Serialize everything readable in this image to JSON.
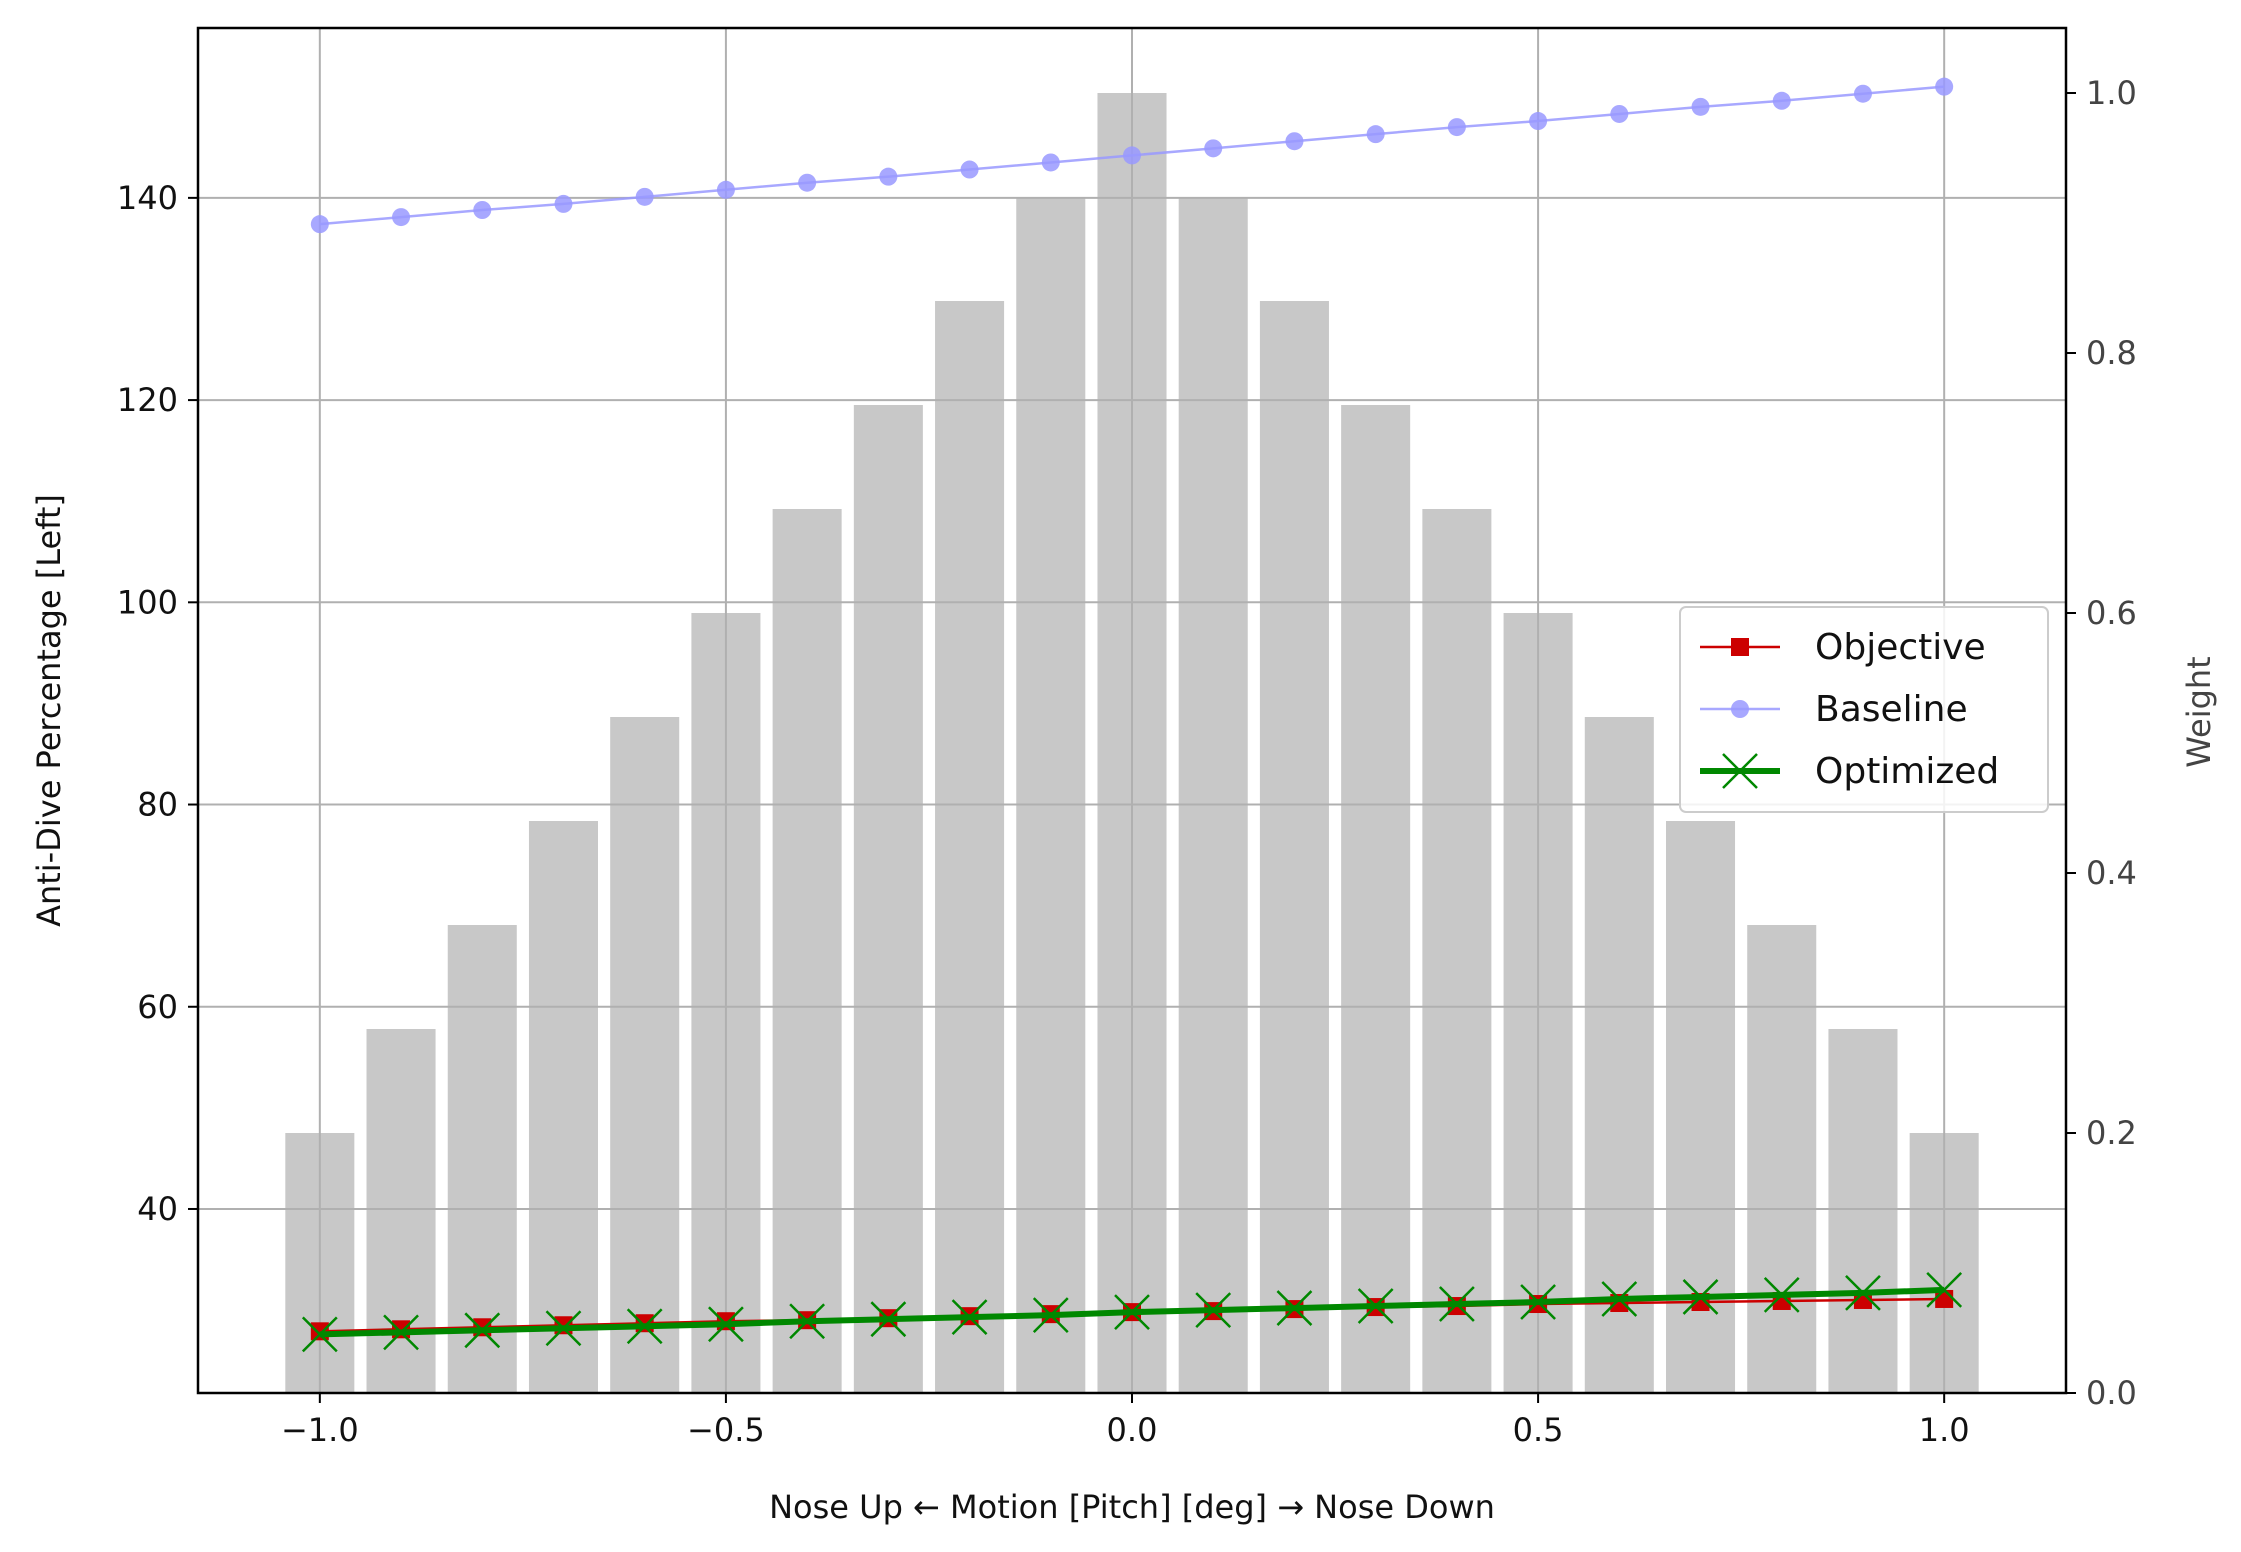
{
  "chart_data": {
    "type": "line",
    "xlabel": "Nose Up ← Motion [Pitch] [deg] → Nose Down",
    "ylabel": "Anti-Dive Percentage [Left]",
    "y2label": "Weight",
    "xlim": [
      -1.15,
      1.15
    ],
    "ylim": [
      21.8,
      156.8
    ],
    "y2lim": [
      0.0,
      1.05
    ],
    "grid": true,
    "legend_position": "center-right",
    "xticks": [
      "−1.0",
      "−0.5",
      "0.0",
      "0.5",
      "1.0"
    ],
    "xtick_values": [
      -1.0,
      -0.5,
      0.0,
      0.5,
      1.0
    ],
    "yticks": [
      "40",
      "60",
      "80",
      "100",
      "120",
      "140"
    ],
    "ytick_values": [
      40,
      60,
      80,
      100,
      120,
      140
    ],
    "y2ticks": [
      "0.0",
      "0.2",
      "0.4",
      "0.6",
      "0.8",
      "1.0"
    ],
    "y2tick_values": [
      0.0,
      0.2,
      0.4,
      0.6,
      0.8,
      1.0
    ],
    "x": [
      -1.0,
      -0.9,
      -0.8,
      -0.7,
      -0.6,
      -0.5,
      -0.4,
      -0.3,
      -0.2,
      -0.1,
      0.0,
      0.1,
      0.2,
      0.3,
      0.4,
      0.5,
      0.6,
      0.7,
      0.8,
      0.9,
      1.0
    ],
    "weights": [
      0.2,
      0.28,
      0.36,
      0.44,
      0.52,
      0.6,
      0.68,
      0.76,
      0.84,
      0.92,
      1.0,
      0.92,
      0.84,
      0.76,
      0.68,
      0.6,
      0.52,
      0.44,
      0.36,
      0.28,
      0.2
    ],
    "series": [
      {
        "name": "Objective",
        "color": "#cc0000",
        "marker": "square",
        "values": [
          27.9,
          28.1,
          28.3,
          28.5,
          28.7,
          28.9,
          29.0,
          29.2,
          29.4,
          29.6,
          29.8,
          29.9,
          30.1,
          30.3,
          30.4,
          30.6,
          30.7,
          30.8,
          30.9,
          31.0,
          31.1
        ]
      },
      {
        "name": "Baseline",
        "color": "#9999ff",
        "marker": "circle",
        "values": [
          137.4,
          138.1,
          138.8,
          139.4,
          140.1,
          140.8,
          141.5,
          142.1,
          142.8,
          143.5,
          144.2,
          144.9,
          145.6,
          146.3,
          147.0,
          147.6,
          148.3,
          149.0,
          149.6,
          150.3,
          151.0
        ]
      },
      {
        "name": "Optimized",
        "color": "#008800",
        "marker": "x",
        "values": [
          27.6,
          27.8,
          28.0,
          28.2,
          28.4,
          28.6,
          28.9,
          29.1,
          29.3,
          29.5,
          29.8,
          30.0,
          30.2,
          30.4,
          30.6,
          30.8,
          31.1,
          31.3,
          31.5,
          31.7,
          32.0
        ]
      }
    ],
    "bar_color": "#c8c8c8",
    "grid_color": "#b0b0b0"
  }
}
